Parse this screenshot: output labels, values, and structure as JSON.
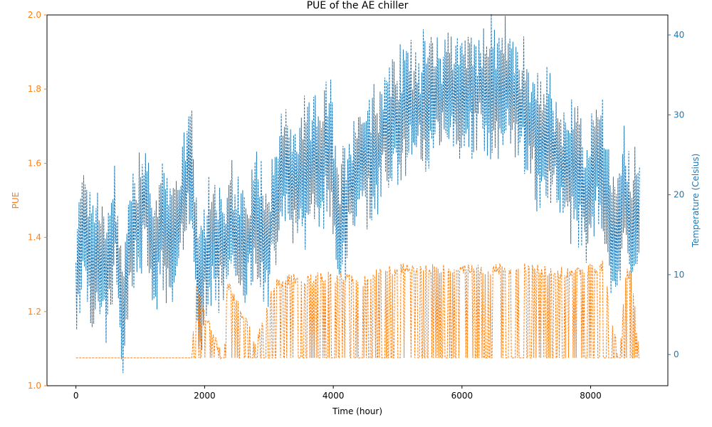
{
  "chart_data": {
    "type": "line",
    "title": "PUE of the AE chiller",
    "xlabel": "Time (hour)",
    "ylabel_left": "PUE",
    "ylabel_right": "Temperature (Celsius)",
    "xlim": [
      -450,
      9200
    ],
    "x_ticks": [
      0,
      2000,
      4000,
      6000,
      8000
    ],
    "ylim_left": [
      1.0,
      2.0
    ],
    "y_ticks_left": [
      "1.0",
      "1.2",
      "1.4",
      "1.6",
      "1.8",
      "2.0"
    ],
    "ylim_right": [
      -3.9,
      42.5
    ],
    "y_ticks_right": [
      0,
      10,
      20,
      30,
      40
    ],
    "line_style": "dashed",
    "grid": false,
    "legend": "none",
    "colors": {
      "pue": "#ff7f0e",
      "temperature": "#1f77b4"
    },
    "series": [
      {
        "axis": "right",
        "x": [
          0,
          120,
          240,
          360,
          480,
          600,
          720,
          840,
          960,
          1080,
          1200,
          1320,
          1440,
          1560,
          1680,
          1800,
          1920,
          2040,
          2160,
          2280,
          2400,
          2520,
          2640,
          2760,
          2880,
          3000,
          3120,
          3240,
          3360,
          3480,
          3600,
          3720,
          3840,
          3960,
          4080,
          4200,
          4320,
          4440,
          4560,
          4680,
          4800,
          4920,
          5040,
          5160,
          5280,
          5400,
          5520,
          5640,
          5760,
          5880,
          6000,
          6120,
          6240,
          6360,
          6480,
          6600,
          6720,
          6840,
          6960,
          7080,
          7200,
          7320,
          7440,
          7560,
          7680,
          7800,
          7920,
          8040,
          8160,
          8280,
          8400,
          8520,
          8640,
          8760
        ],
        "y": [
          6,
          19,
          11,
          14,
          8,
          17,
          3,
          15,
          17,
          20,
          12,
          16,
          13,
          16,
          21,
          22,
          6,
          14,
          15,
          13,
          16,
          14,
          12,
          18,
          16,
          15,
          20,
          23,
          22,
          22,
          23,
          24,
          25,
          26,
          16,
          19,
          23,
          24,
          25,
          26,
          28,
          29,
          30,
          31,
          32,
          31,
          33,
          31,
          34,
          32,
          33,
          32,
          33,
          33,
          33,
          34,
          33,
          32,
          31,
          28,
          27,
          27,
          26,
          24,
          23,
          22,
          19,
          23,
          26,
          17,
          14,
          20,
          16,
          18
        ],
        "values_are_midline_estimates": true
      },
      {
        "axis": "left",
        "x": [
          0,
          1800,
          1850,
          2300,
          2350,
          2800,
          3100,
          3300,
          4000,
          4250,
          4400,
          4700,
          5000,
          5500,
          6000,
          6500,
          7000,
          7500,
          8000,
          8200,
          8450,
          8550,
          8650,
          8760
        ],
        "y": [
          1.075,
          1.075,
          1.28,
          1.075,
          1.29,
          1.13,
          1.29,
          1.3,
          1.31,
          1.3,
          1.29,
          1.32,
          1.33,
          1.33,
          1.33,
          1.33,
          1.33,
          1.32,
          1.33,
          1.34,
          1.075,
          1.33,
          1.3,
          1.075
        ],
        "values_are_peak_estimates": true
      }
    ]
  }
}
